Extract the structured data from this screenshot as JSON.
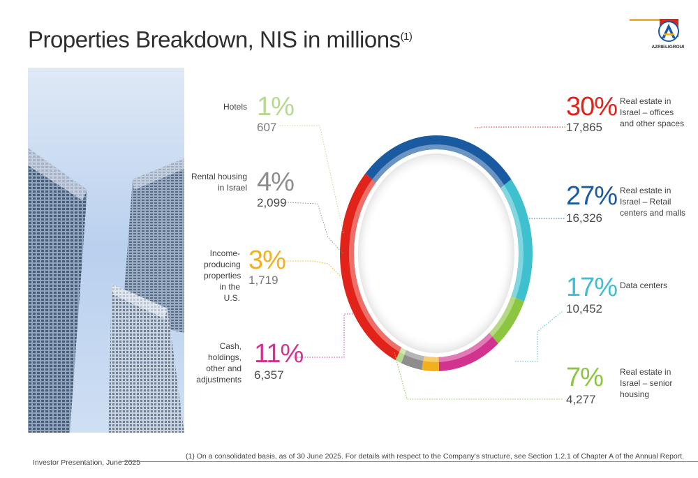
{
  "title": {
    "main": "Properties Breakdown, NIS in millions",
    "sup": "(1)"
  },
  "logo": {
    "text": "AZRIELIGROUP",
    "colors": [
      "#f2b01e",
      "#e2231a",
      "#1a5aa0"
    ]
  },
  "footnote": "(1) On a consolidated basis, as of 30 June 2025. For details with respect to the Company's structure, see Section 1.2.1 of Chapter A of the Annual Report.",
  "footer": "Investor Presentation, June 2025",
  "chart_data": {
    "type": "pie",
    "variant": "donut",
    "title": "Properties Breakdown, NIS in millions",
    "units": "NIS in millions",
    "slices": [
      {
        "label": "Real estate in Israel – offices and other spaces",
        "percent_label": "30%",
        "value": 17865,
        "value_label": "17,865",
        "color": "#e2231a"
      },
      {
        "label": "Real estate in Israel – Retail centers and malls",
        "percent_label": "27%",
        "value": 16326,
        "value_label": "16,326",
        "color": "#1a5aa0"
      },
      {
        "label": "Data centers",
        "percent_label": "17%",
        "value": 10452,
        "value_label": "10,452",
        "color": "#3ec0cf"
      },
      {
        "label": "Real estate in Israel – senior housing",
        "percent_label": "7%",
        "value": 4277,
        "value_label": "4,277",
        "color": "#8cc641"
      },
      {
        "label": "Cash, holdings, other and adjustments",
        "percent_label": "11%",
        "value": 6357,
        "value_label": "6,357",
        "color": "#d2338f"
      },
      {
        "label": "Income-producing properties in the U.S.",
        "percent_label": "3%",
        "value": 1719,
        "value_label": "1,719",
        "color": "#f2b01e"
      },
      {
        "label": "Rental housing in Israel",
        "percent_label": "4%",
        "value": 2099,
        "value_label": "2,099",
        "color": "#8d8d8d"
      },
      {
        "label": "Hotels",
        "percent_label": "1%",
        "value": 607,
        "value_label": "607",
        "color": "#b5d98e"
      }
    ]
  }
}
